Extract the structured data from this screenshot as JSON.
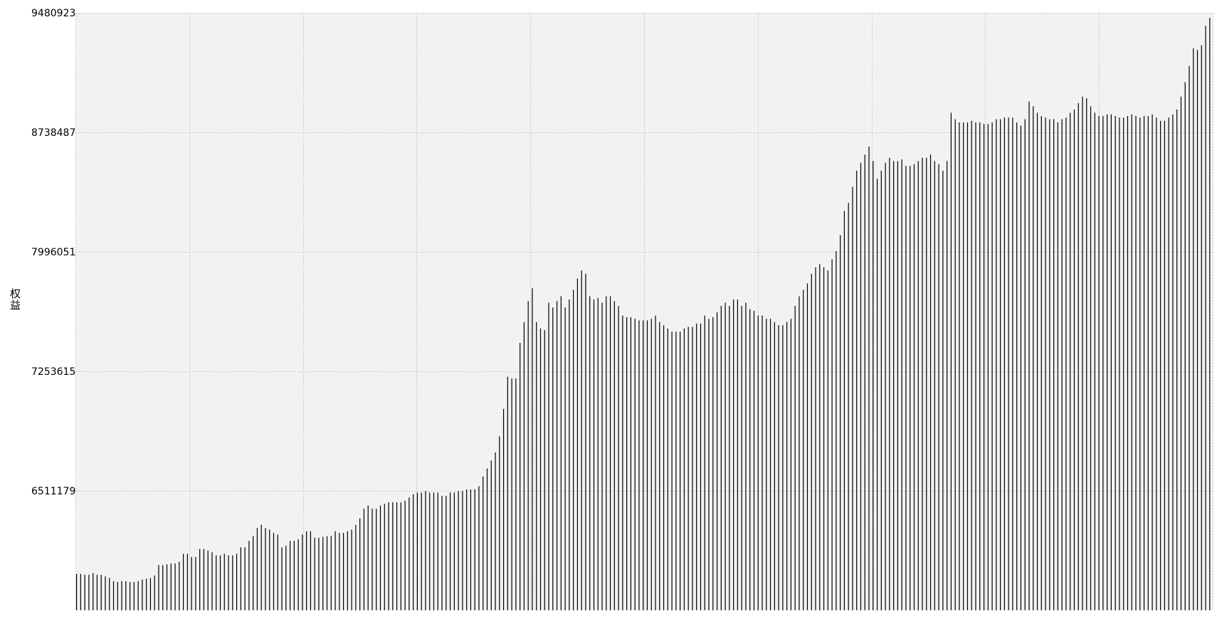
{
  "chart_data": {
    "type": "bar",
    "title": "",
    "xlabel": "",
    "ylabel": "权益",
    "ylim": [
      5768743,
      9480923
    ],
    "y_ticks": [
      "9480923",
      "8738487",
      "7996051",
      "7253615",
      "6511179"
    ],
    "y_tick_values": [
      9480923,
      8738487,
      7996051,
      7253615,
      6511179
    ],
    "grid": true,
    "bar_color": "#000000",
    "plot_background": "#f2f2f2",
    "grid_color": "#c8c8c8",
    "values": [
      5995000,
      5995000,
      5990000,
      5990000,
      6000000,
      5990000,
      5990000,
      5980000,
      5970000,
      5950000,
      5945000,
      5950000,
      5950000,
      5945000,
      5945000,
      5950000,
      5960000,
      5965000,
      5970000,
      5985000,
      6050000,
      6050000,
      6055000,
      6060000,
      6060000,
      6070000,
      6120000,
      6120000,
      6100000,
      6100000,
      6150000,
      6150000,
      6140000,
      6130000,
      6110000,
      6110000,
      6120000,
      6110000,
      6110000,
      6120000,
      6160000,
      6160000,
      6200000,
      6230000,
      6280000,
      6300000,
      6280000,
      6270000,
      6250000,
      6240000,
      6160000,
      6170000,
      6200000,
      6200000,
      6210000,
      6240000,
      6260000,
      6260000,
      6220000,
      6220000,
      6225000,
      6230000,
      6230000,
      6260000,
      6250000,
      6250000,
      6260000,
      6270000,
      6300000,
      6340000,
      6400000,
      6420000,
      6400000,
      6400000,
      6420000,
      6430000,
      6440000,
      6440000,
      6440000,
      6440000,
      6450000,
      6470000,
      6490000,
      6500000,
      6500000,
      6510000,
      6500000,
      6500000,
      6500000,
      6480000,
      6480000,
      6500000,
      6500000,
      6510000,
      6510000,
      6520000,
      6520000,
      6520000,
      6540000,
      6600000,
      6650000,
      6700000,
      6750000,
      6850000,
      7020000,
      7220000,
      7210000,
      7210000,
      7430000,
      7560000,
      7690000,
      7770000,
      7560000,
      7520000,
      7510000,
      7680000,
      7650000,
      7690000,
      7720000,
      7650000,
      7700000,
      7760000,
      7830000,
      7880000,
      7860000,
      7720000,
      7700000,
      7710000,
      7680000,
      7720000,
      7720000,
      7690000,
      7660000,
      7600000,
      7590000,
      7590000,
      7580000,
      7570000,
      7570000,
      7570000,
      7580000,
      7600000,
      7560000,
      7540000,
      7520000,
      7500000,
      7500000,
      7500000,
      7520000,
      7530000,
      7530000,
      7550000,
      7550000,
      7600000,
      7580000,
      7590000,
      7620000,
      7660000,
      7680000,
      7660000,
      7700000,
      7700000,
      7660000,
      7680000,
      7640000,
      7630000,
      7600000,
      7600000,
      7580000,
      7580000,
      7560000,
      7540000,
      7540000,
      7560000,
      7580000,
      7660000,
      7720000,
      7760000,
      7800000,
      7860000,
      7900000,
      7920000,
      7900000,
      7880000,
      7950000,
      8000000,
      8100000,
      8250000,
      8300000,
      8400000,
      8500000,
      8550000,
      8600000,
      8650000,
      8560000,
      8450000,
      8500000,
      8550000,
      8580000,
      8560000,
      8560000,
      8570000,
      8530000,
      8530000,
      8540000,
      8560000,
      8580000,
      8580000,
      8600000,
      8560000,
      8540000,
      8500000,
      8560000,
      8860000,
      8820000,
      8800000,
      8800000,
      8800000,
      8810000,
      8800000,
      8800000,
      8790000,
      8790000,
      8800000,
      8820000,
      8820000,
      8830000,
      8830000,
      8830000,
      8800000,
      8780000,
      8820000,
      8930000,
      8900000,
      8860000,
      8840000,
      8830000,
      8820000,
      8820000,
      8800000,
      8820000,
      8830000,
      8860000,
      8880000,
      8920000,
      8960000,
      8950000,
      8900000,
      8860000,
      8840000,
      8840000,
      8850000,
      8850000,
      8840000,
      8830000,
      8830000,
      8840000,
      8850000,
      8840000,
      8830000,
      8840000,
      8840000,
      8850000,
      8830000,
      8810000,
      8810000,
      8830000,
      8850000,
      8880000,
      8960000,
      9050000,
      9150000,
      9260000,
      9250000,
      9280000,
      9400000,
      9450000
    ]
  }
}
